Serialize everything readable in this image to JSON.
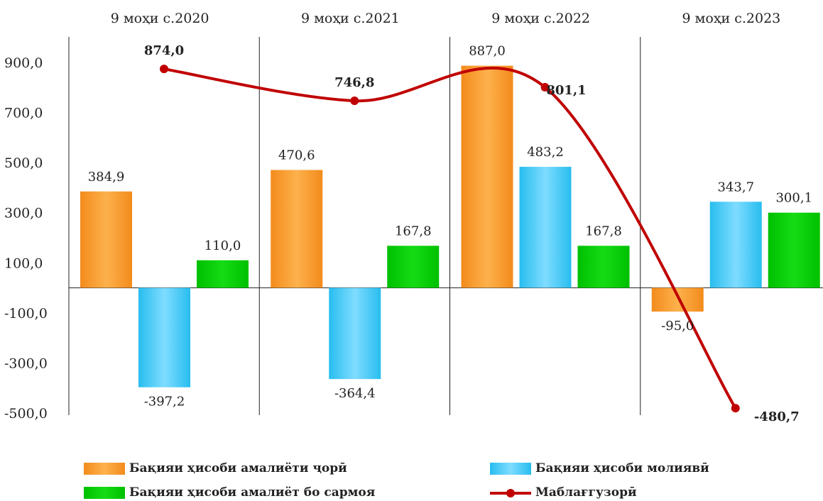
{
  "chart_data": {
    "type": "bar",
    "categories": [
      "9 моҳи с.2020",
      "9 моҳи с.2021",
      "9 моҳи с.2022",
      "9 моҳи с.2023"
    ],
    "series": [
      {
        "name": "Бақияи ҳисоби амалиёти ҷорӣ",
        "values": [
          384.9,
          470.6,
          887.0,
          -95.0
        ],
        "labels": [
          "384,9",
          "470,6",
          "887,0",
          "-95,0"
        ],
        "color": "#f7941d"
      },
      {
        "name": "Бақияи ҳисоби молиявӣ",
        "values": [
          -397.2,
          -364.4,
          483.2,
          343.7
        ],
        "labels": [
          "-397,2",
          "-364,4",
          "483,2",
          "343,7"
        ],
        "color": "#33c6f4"
      },
      {
        "name": "Бақияи ҳисоби амалиёт бо сармоя",
        "values": [
          110.0,
          167.8,
          167.8,
          300.1
        ],
        "labels": [
          "110,0",
          "167,8",
          "167,8",
          "300,1"
        ],
        "color": "#00cc00"
      }
    ],
    "line_series": {
      "name": "Маблағгузорӣ",
      "values": [
        874.0,
        746.8,
        801.1,
        -480.7
      ],
      "labels": [
        "874,0",
        "746,8",
        "801,1",
        "-480,7"
      ],
      "color": "#c00000"
    },
    "yticks": [
      900,
      700,
      500,
      300,
      100,
      -100,
      -300,
      -500
    ],
    "ytick_labels": [
      "900,0",
      "700,0",
      "500,0",
      "300,0",
      "100,0",
      "-100,0",
      "-300,0",
      "-500,0"
    ],
    "ylim": [
      -500,
      900
    ],
    "legend_position": "bottom",
    "grid": false
  }
}
